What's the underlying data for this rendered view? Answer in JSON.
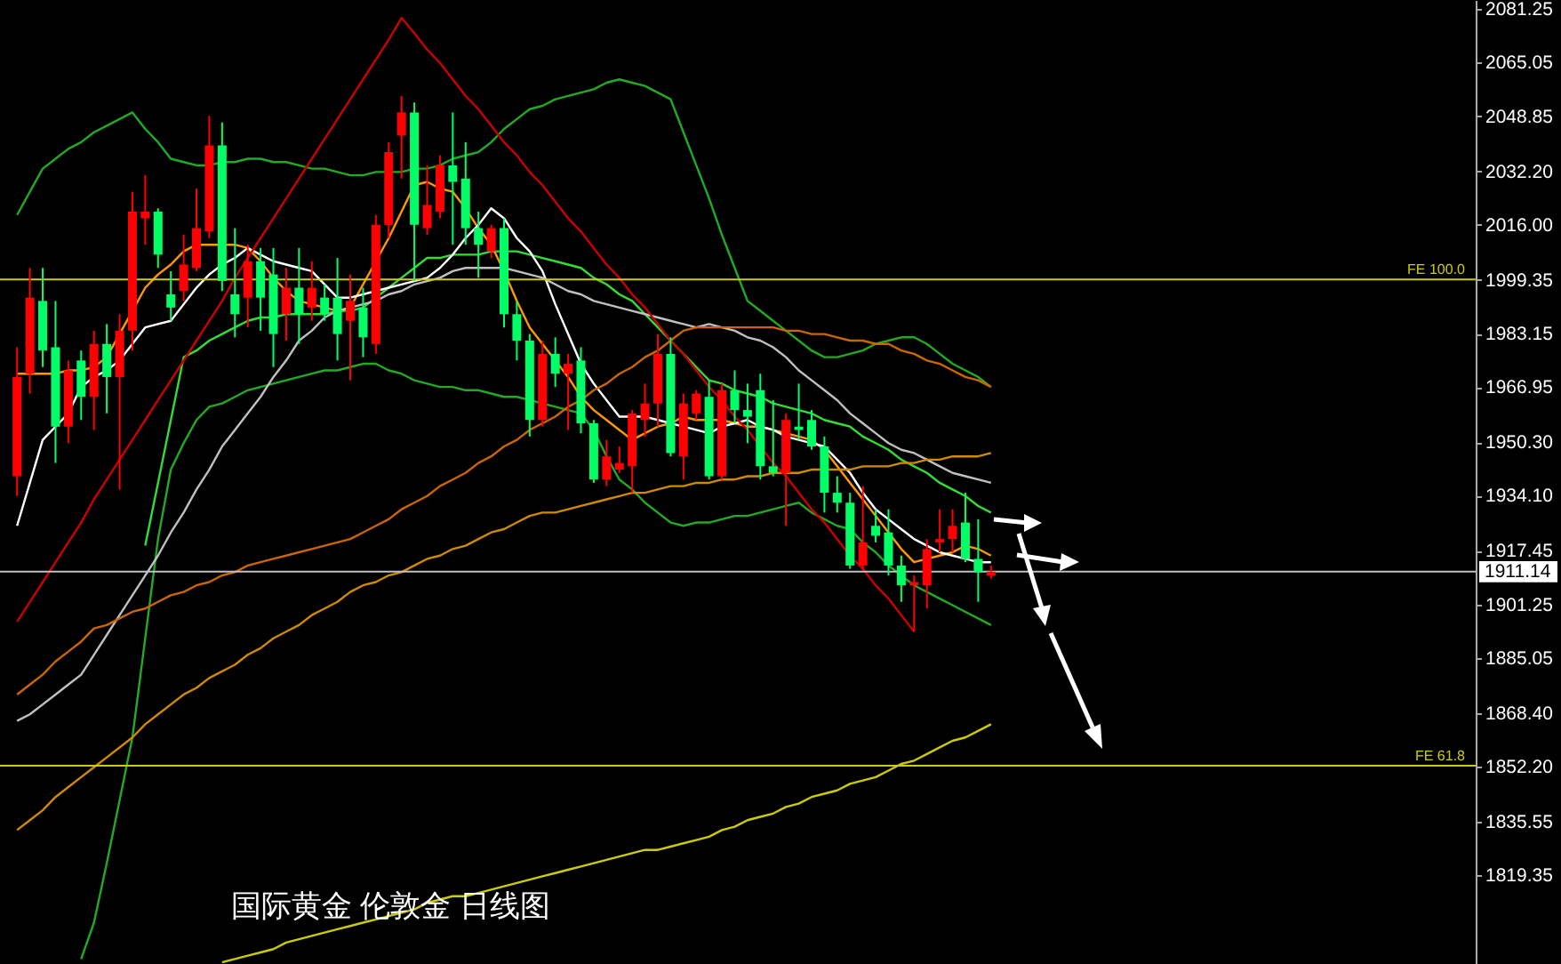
{
  "chart_data": {
    "type": "candlestick",
    "categories": [
      null,
      null,
      null,
      null,
      null,
      null,
      null,
      null,
      null,
      null,
      null,
      null,
      null,
      null,
      null,
      null,
      null,
      null,
      null,
      null,
      null,
      null,
      null,
      null,
      null,
      null,
      null,
      null,
      null,
      null,
      null,
      null,
      null,
      null,
      null,
      null,
      null,
      null,
      null,
      null,
      null,
      null,
      null,
      null,
      null,
      null,
      null,
      null,
      null,
      null,
      null,
      null,
      null,
      null,
      null,
      null,
      null,
      null,
      null,
      null,
      null,
      null,
      null,
      null,
      null,
      null,
      null,
      null,
      null,
      null,
      null,
      null,
      null,
      null,
      null,
      null,
      null
    ],
    "ohlc": [
      [
        1940,
        1979,
        1934,
        1970
      ],
      [
        1971,
        2003,
        1965,
        1994
      ],
      [
        1993,
        2003,
        1973,
        1978
      ],
      [
        1979,
        1993,
        1944,
        1955
      ],
      [
        1955,
        1975,
        1950,
        1972
      ],
      [
        1975,
        1978,
        1957,
        1964
      ],
      [
        1964,
        1984,
        1954,
        1980
      ],
      [
        1980,
        1986,
        1959,
        1970
      ],
      [
        1970,
        1989,
        1936,
        1984
      ],
      [
        1984,
        2026,
        1978,
        2020
      ],
      [
        2018,
        2031,
        2010,
        2020
      ],
      [
        2020,
        2021,
        2003,
        2007
      ],
      [
        1995,
        2002,
        1987,
        1991
      ],
      [
        1996,
        2013,
        1993,
        2004
      ],
      [
        2003,
        2027,
        2002,
        2015
      ],
      [
        2014,
        2049,
        2012,
        2040
      ],
      [
        2040,
        2047,
        1996,
        1999
      ],
      [
        1995,
        2015,
        1982,
        1989
      ],
      [
        1994,
        2010,
        1985,
        2005
      ],
      [
        2005,
        2009,
        1984,
        1994
      ],
      [
        2001,
        2009,
        1973,
        1983
      ],
      [
        1989,
        2003,
        1981,
        1997
      ],
      [
        1997,
        2009,
        1980,
        1989
      ],
      [
        1991,
        2005,
        1987,
        1997
      ],
      [
        1994,
        1998,
        1987,
        1989
      ],
      [
        1994,
        2006,
        1975,
        1983
      ],
      [
        1987,
        2001,
        1969,
        1993
      ],
      [
        1991,
        1997,
        1976,
        1982
      ],
      [
        1980,
        2019,
        1977,
        2016
      ],
      [
        2016,
        2041,
        2012,
        2038
      ],
      [
        2043,
        2055,
        2030,
        2050
      ],
      [
        2050,
        2053,
        1999,
        2016
      ],
      [
        2015,
        2034,
        2013,
        2022
      ],
      [
        2020,
        2037,
        2018,
        2034
      ],
      [
        2034,
        2050,
        2010,
        2029
      ],
      [
        2030,
        2041,
        2010,
        2015
      ],
      [
        2015,
        2020,
        2000,
        2010
      ],
      [
        2008,
        2016,
        2006,
        2015
      ],
      [
        2015,
        2018,
        1985,
        1989
      ],
      [
        1989,
        1993,
        1975,
        1981
      ],
      [
        1981,
        1983,
        1952,
        1957
      ],
      [
        1957,
        1981,
        1955,
        1977
      ],
      [
        1977,
        1982,
        1967,
        1971
      ],
      [
        1971,
        1977,
        1954,
        1974
      ],
      [
        1975,
        1979,
        1953,
        1956
      ],
      [
        1956,
        1957,
        1938,
        1939
      ],
      [
        1939,
        1951,
        1937,
        1946
      ],
      [
        1942,
        1949,
        1941,
        1944
      ],
      [
        1943,
        1960,
        1935,
        1959
      ],
      [
        1957,
        1968,
        1952,
        1962
      ],
      [
        1962,
        1983,
        1955,
        1977
      ],
      [
        1977,
        1982,
        1946,
        1947
      ],
      [
        1946,
        1965,
        1939,
        1962
      ],
      [
        1959,
        1966,
        1957,
        1965
      ],
      [
        1964,
        1969,
        1939,
        1940
      ],
      [
        1940,
        1968,
        1939,
        1966
      ],
      [
        1966,
        1972,
        1956,
        1960
      ],
      [
        1960,
        1968,
        1950,
        1958
      ],
      [
        1966,
        1971,
        1939,
        1943
      ],
      [
        1943,
        1963,
        1940,
        1941
      ],
      [
        1941,
        1959,
        1925,
        1957
      ],
      [
        1955,
        1968,
        1951,
        1954
      ],
      [
        1957,
        1960,
        1948,
        1949
      ],
      [
        1949,
        1952,
        1929,
        1935
      ],
      [
        1935,
        1940,
        1929,
        1932
      ],
      [
        1932,
        1935,
        1912,
        1913
      ],
      [
        1913,
        1937,
        1912,
        1920
      ],
      [
        1925,
        1930,
        1920,
        1922
      ],
      [
        1923,
        1930,
        1910,
        1913
      ],
      [
        1913,
        1916,
        1902,
        1907
      ],
      [
        1907,
        1910,
        1893,
        1908
      ],
      [
        1907,
        1921,
        1900,
        1918
      ],
      [
        1920,
        1930,
        1917,
        1921
      ],
      [
        1921,
        1930,
        1917,
        1925
      ],
      [
        1926,
        1935,
        1914,
        1915
      ],
      [
        1915,
        1927,
        1902,
        1911
      ],
      [
        1910,
        1913,
        1909,
        1911.14
      ]
    ],
    "colors": [
      "#ff0000",
      "#ff0000",
      "#00ff66",
      "#00ff66",
      "#ff0000",
      "#00ff66",
      "#ff0000",
      "#00ff66",
      "#ff0000",
      "#ff0000",
      "#ff0000",
      "#00ff66",
      "#00ff66",
      "#ff0000",
      "#ff0000",
      "#ff0000",
      "#00ff66",
      "#00ff66",
      "#ff0000",
      "#00ff66",
      "#00ff66",
      "#ff0000",
      "#00ff66",
      "#ff0000",
      "#00ff66",
      "#00ff66",
      "#ff0000",
      "#00ff66",
      "#ff0000",
      "#ff0000",
      "#ff0000",
      "#00ff66",
      "#ff0000",
      "#ff0000",
      "#00ff66",
      "#00ff66",
      "#00ff66",
      "#ff0000",
      "#00ff66",
      "#00ff66",
      "#00ff66",
      "#ff0000",
      "#00ff66",
      "#ff0000",
      "#00ff66",
      "#00ff66",
      "#ff0000",
      "#ff0000",
      "#ff0000",
      "#ff0000",
      "#ff0000",
      "#00ff66",
      "#ff0000",
      "#ff0000",
      "#00ff66",
      "#ff0000",
      "#00ff66",
      "#00ff66",
      "#00ff66",
      "#00ff66",
      "#ff0000",
      "#00ff66",
      "#00ff66",
      "#00ff66",
      "#00ff66",
      "#00ff66",
      "#ff0000",
      "#00ff66",
      "#00ff66",
      "#00ff66",
      "#ff0000",
      "#ff0000",
      "#ff0000",
      "#ff0000",
      "#00ff66",
      "#00ff66",
      "#ff0000"
    ],
    "series": [
      {
        "type": "line",
        "color": "#22aa22",
        "values": [
          2019,
          2026,
          2033,
          2036,
          2039,
          2041,
          2044,
          2046,
          2048,
          2050,
          2045,
          2041,
          2036,
          2035,
          2034,
          2034,
          2035,
          2035,
          2036,
          2036,
          2035,
          2035,
          2034,
          2033,
          2033,
          2032,
          2031,
          2031,
          2032,
          2032,
          2032,
          2033,
          2033,
          2034,
          2036,
          2037,
          2038,
          2041,
          2045,
          2048,
          2051,
          2052,
          2054,
          2055,
          2056,
          2057,
          2059,
          2060,
          2059,
          2058,
          2056,
          2054,
          2044,
          2034,
          2024,
          2013,
          2003,
          1993,
          1990,
          1987,
          1984,
          1981,
          1978,
          1976,
          1976,
          1977,
          1978,
          1980,
          1981,
          1982,
          1982,
          1980,
          1977,
          1974,
          1972,
          1970,
          1967
        ]
      },
      {
        "type": "line",
        "color": "#22aa22",
        "values": [
          null,
          null,
          null,
          null,
          null,
          1794,
          1805,
          1823,
          1842,
          1861,
          1891,
          1921,
          1942,
          1950,
          1957,
          1961,
          1962,
          1964,
          1966,
          1967,
          1968,
          1969,
          1970,
          1971,
          1972,
          1972,
          1973,
          1974,
          1974,
          1972,
          1971,
          1969,
          1968,
          1967,
          1967,
          1966,
          1966,
          1965,
          1964,
          1964,
          1963,
          1962,
          1961,
          1960,
          1959,
          1954,
          1946,
          1939,
          1936,
          1932,
          1929,
          1926,
          1925,
          1926,
          1926,
          1927,
          1928,
          1928,
          1929,
          1930,
          1931,
          1932,
          1929,
          1927,
          1925,
          1924,
          1920,
          1917,
          1913,
          1910,
          1907,
          1905,
          1903,
          1901,
          1899,
          1897,
          1895
        ]
      },
      {
        "type": "line",
        "color": "#33dd33",
        "values": [
          null,
          null,
          null,
          null,
          null,
          null,
          null,
          null,
          null,
          null,
          1919,
          1938,
          1957,
          1976,
          1978,
          1981,
          1983,
          1985,
          1987,
          1988,
          1988,
          1989,
          1989,
          1989,
          1989,
          1990,
          1990,
          1991,
          1994,
          1997,
          2000,
          2003,
          2006,
          2006,
          2007,
          2007,
          2007,
          2008,
          2008,
          2008,
          2007,
          2006,
          2005,
          2004,
          2003,
          2000,
          1998,
          1995,
          1993,
          1989,
          1985,
          1981,
          1977,
          1973,
          1969,
          1968,
          1966,
          1965,
          1964,
          1962,
          1961,
          1960,
          1959,
          1957,
          1956,
          1955,
          1952,
          1950,
          1948,
          1945,
          1943,
          1941,
          1938,
          1936,
          1934,
          1931,
          1929
        ]
      },
      {
        "type": "line",
        "color": "#ff9900",
        "values": [
          1971,
          1971,
          1971,
          1971,
          1972,
          1972,
          1973,
          1976,
          1983,
          1990,
          1997,
          2001,
          2004,
          2008,
          2010,
          2010,
          2010,
          2010,
          2009,
          2005,
          2000,
          1996,
          1993,
          1992,
          1991,
          1990,
          1991,
          1998,
          2005,
          2012,
          2020,
          2028,
          2029,
          2027,
          2026,
          2021,
          2015,
          2010,
          2002,
          1993,
          1985,
          1980,
          1975,
          1970,
          1964,
          1960,
          1957,
          1954,
          1951,
          1953,
          1955,
          1956,
          1958,
          1957,
          1957,
          1957,
          1956,
          1955,
          1955,
          1954,
          1953,
          1952,
          1951,
          1948,
          1943,
          1938,
          1933,
          1928,
          1923,
          1918,
          1914,
          1915,
          1916,
          1917,
          1919,
          1918,
          1916
        ]
      },
      {
        "type": "line",
        "color": "#ffffff",
        "values": [
          1925,
          1938,
          1951,
          1955,
          1959,
          1967,
          1970,
          1972,
          1975,
          1980,
          1985,
          1986,
          1987,
          1992,
          1997,
          2001,
          2004,
          2006,
          2009,
          2007,
          2005,
          2004,
          2003,
          2002,
          1998,
          1994,
          1994,
          1995,
          1996,
          1997,
          1998,
          1999,
          2000,
          2003,
          2007,
          2012,
          2016,
          2021,
          2018,
          2012,
          2008,
          2002,
          1992,
          1983,
          1974,
          1968,
          1963,
          1958,
          1958,
          1958,
          1957,
          1956,
          1955,
          1954,
          1953,
          1955,
          1956,
          1957,
          1955,
          1954,
          1952,
          1951,
          1950,
          1949,
          1945,
          1941,
          1935,
          1930,
          1927,
          1924,
          1921,
          1919,
          1917,
          1916,
          1915,
          1914,
          1914
        ]
      },
      {
        "type": "line",
        "color": "#c0c0c0",
        "values": [
          1866,
          1868,
          1871,
          1874,
          1877,
          1880,
          1886,
          1892,
          1898,
          1904,
          1910,
          1916,
          1923,
          1929,
          1936,
          1942,
          1949,
          1954,
          1959,
          1964,
          1970,
          1975,
          1981,
          1984,
          1988,
          1990,
          1991,
          1992,
          1993,
          1995,
          1996,
          1998,
          1999,
          2000,
          2002,
          2003,
          2003,
          2003,
          2003,
          2002,
          2001,
          2000,
          1998,
          1996,
          1995,
          1993,
          1992,
          1991,
          1990,
          1989,
          1988,
          1987,
          1986,
          1985,
          1986,
          1985,
          1984,
          1982,
          1981,
          1979,
          1976,
          1972,
          1969,
          1966,
          1963,
          1959,
          1956,
          1953,
          1950,
          1948,
          1947,
          1945,
          1943,
          1941,
          1940,
          1939,
          1938
        ]
      },
      {
        "type": "line",
        "color": "#cc6600",
        "values": [
          1874,
          1877,
          1880,
          1884,
          1887,
          1890,
          1894,
          1895,
          1897,
          1899,
          1900,
          1902,
          1904,
          1905,
          1907,
          1908,
          1910,
          1911,
          1913,
          1914,
          1915,
          1916,
          1917,
          1918,
          1919,
          1920,
          1921,
          1923,
          1925,
          1927,
          1930,
          1932,
          1934,
          1937,
          1939,
          1941,
          1944,
          1946,
          1949,
          1951,
          1954,
          1956,
          1958,
          1961,
          1963,
          1966,
          1968,
          1971,
          1973,
          1976,
          1978,
          1981,
          1984,
          1985,
          1985,
          1985,
          1985,
          1985,
          1985,
          1985,
          1984,
          1984,
          1983,
          1983,
          1982,
          1981,
          1981,
          1980,
          1980,
          1978,
          1977,
          1975,
          1974,
          1972,
          1970,
          1969,
          1967
        ]
      },
      {
        "type": "line",
        "color": "#d08a00",
        "values": [
          1833,
          1836,
          1839,
          1843,
          1846,
          1849,
          1852,
          1855,
          1858,
          1861,
          1865,
          1868,
          1871,
          1874,
          1876,
          1879,
          1881,
          1883,
          1886,
          1888,
          1891,
          1893,
          1895,
          1898,
          1900,
          1902,
          1905,
          1907,
          1908,
          1910,
          1911,
          1913,
          1915,
          1916,
          1918,
          1919,
          1921,
          1923,
          1924,
          1926,
          1928,
          1929,
          1929,
          1930,
          1931,
          1932,
          1933,
          1934,
          1935,
          1935,
          1936,
          1937,
          1937,
          1938,
          1938,
          1939,
          1939,
          1940,
          1940,
          1941,
          1941,
          1941,
          1942,
          1942,
          1942,
          1942,
          1943,
          1943,
          1943,
          1944,
          1944,
          1945,
          1945,
          1946,
          1946,
          1946,
          1947
        ]
      },
      {
        "type": "line",
        "color": "#cccc00",
        "values": [
          null,
          null,
          null,
          null,
          null,
          null,
          null,
          null,
          null,
          null,
          null,
          null,
          null,
          null,
          null,
          null,
          1793,
          1794,
          1795,
          1796,
          1797,
          1799,
          1800,
          1801,
          1802,
          1803,
          1804,
          1805,
          1806,
          1807,
          1808,
          1809,
          1811,
          1812,
          1813,
          1813,
          1814,
          1815,
          1816,
          1817,
          1818,
          1819,
          1820,
          1821,
          1822,
          1823,
          1824,
          1825,
          1826,
          1827,
          1827,
          1828,
          1829,
          1830,
          1831,
          1833,
          1834,
          1836,
          1837,
          1838,
          1840,
          1841,
          1843,
          1844,
          1845,
          1847,
          1848,
          1849,
          1851,
          1853,
          1854,
          1856,
          1858,
          1860,
          1861,
          1863,
          1865
        ]
      },
      {
        "type": "line",
        "color": "#cc0000",
        "values": [
          1896,
          1902,
          1908,
          1914,
          1920,
          1926,
          1933,
          1939,
          1945,
          1951,
          1957,
          1963,
          1969,
          1975,
          1981,
          1987,
          1993,
          2000,
          2006,
          2012,
          2018,
          2024,
          2030,
          2036,
          2042,
          2048,
          2054,
          2060,
          2066,
          2072,
          2078.6,
          2074,
          2069,
          2065,
          2060,
          2055,
          2051,
          2046,
          2041,
          2037,
          2032,
          2028,
          2023,
          2018,
          2014,
          2009,
          2004,
          2000,
          1995,
          1991,
          1986,
          1981,
          1977,
          1972,
          1967,
          1963,
          1958,
          1954,
          1949,
          1944,
          1940,
          1935,
          1930,
          1926,
          1921,
          1916,
          1912,
          1907,
          1903,
          1898,
          1893,
          null,
          null,
          null,
          null,
          null,
          null
        ]
      }
    ],
    "ylim": [
      1792.5,
      2084
    ],
    "yticks": [
      2081.25,
      2065.05,
      2048.85,
      {
        "value": 2032.2,
        "label": "2032.20"
      },
      {
        "value": 2016,
        "label": "2016.00"
      },
      1999.35,
      1983.15,
      1966.95,
      {
        "value": 1950.3,
        "label": "1950.30"
      },
      {
        "value": 1934.1,
        "label": "1934.10"
      },
      1917.45,
      1901.25,
      1885.05,
      {
        "value": 1868.4,
        "label": "1868.40"
      },
      {
        "value": 1852.2,
        "label": "1852.20"
      },
      1835.55,
      1819.35
    ],
    "tick_labels": "y",
    "ref_lines": [
      {
        "axis": "y",
        "value": 1999.5,
        "label": "FE 100.0",
        "color": "#cccc00"
      },
      {
        "axis": "y",
        "value": 1852.5,
        "label": "FE 61.8",
        "color": "#cccc00"
      },
      {
        "axis": "y",
        "value": 1911.14,
        "label": "1911.14",
        "color": "#c0c0c0"
      }
    ],
    "annotations": [
      "国际黄金 伦敦金 日线图"
    ],
    "grid": false,
    "marker": "none",
    "line_style": "solid"
  }
}
